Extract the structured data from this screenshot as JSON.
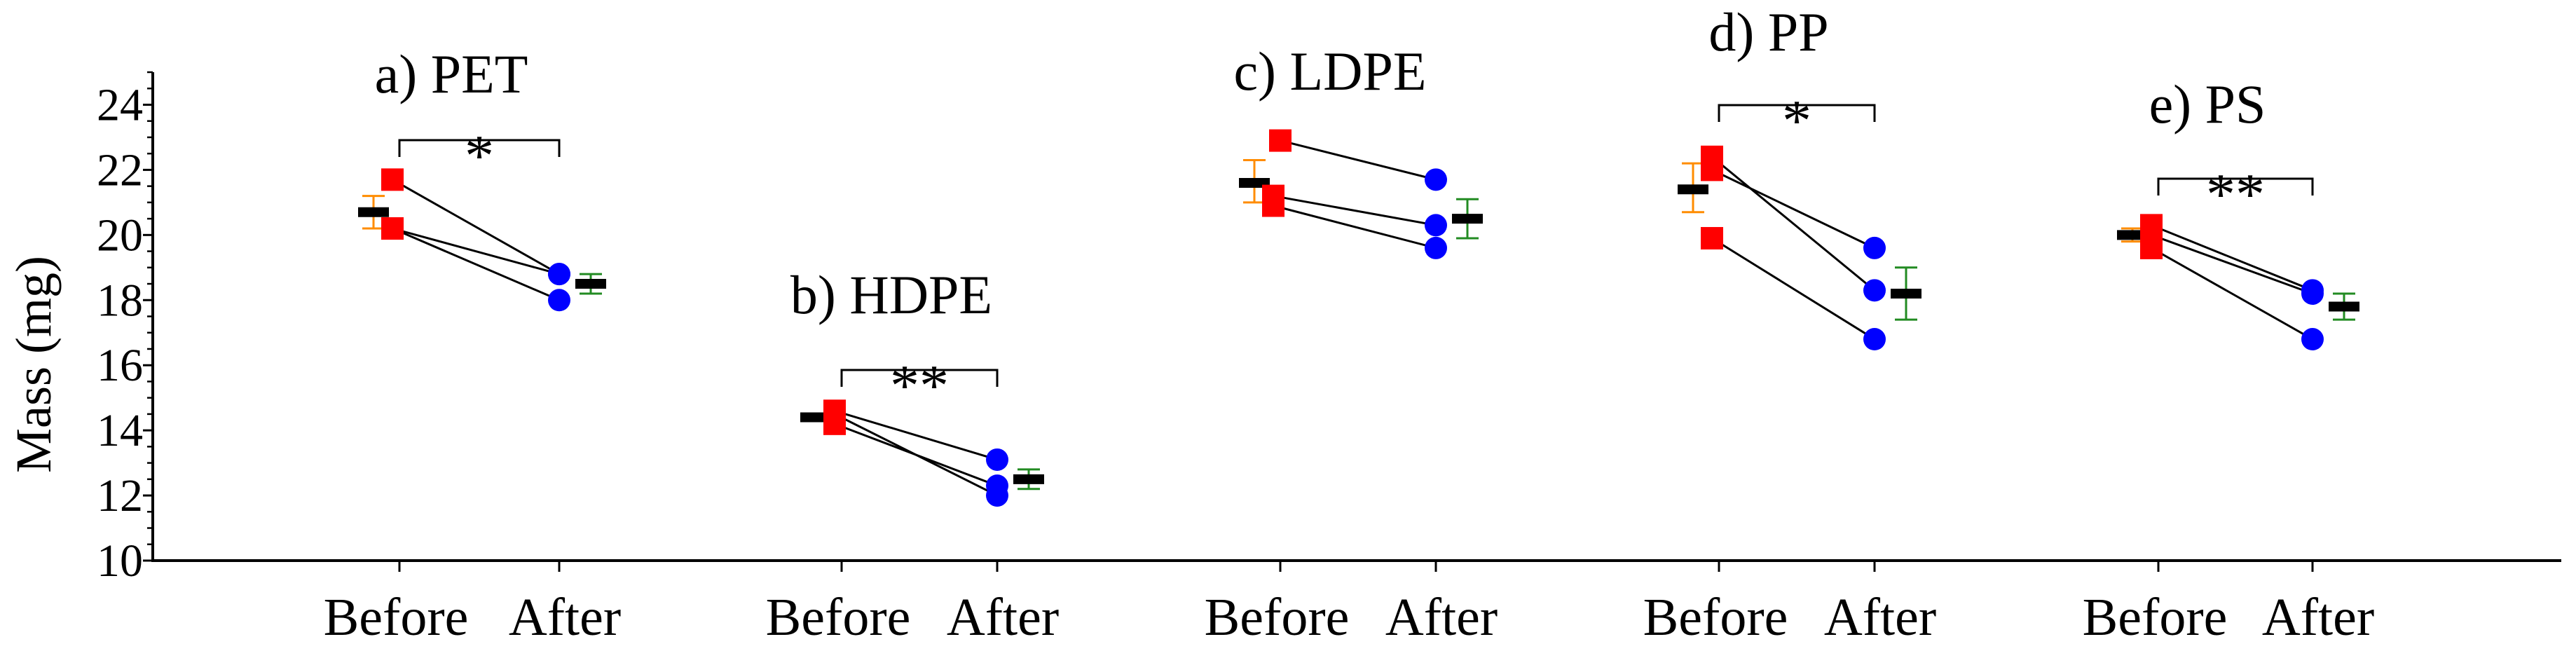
{
  "chart_data": {
    "type": "scatter",
    "ylabel": "Mass (mg)",
    "ylim": [
      10,
      25
    ],
    "yticks": [
      10,
      12,
      14,
      16,
      18,
      20,
      22,
      24
    ],
    "grid": false,
    "colors": {
      "before_marker": "#ff0000",
      "after_marker": "#0000ff",
      "before_error": "#ff8c00",
      "after_error": "#228b22",
      "axis": "#000000"
    },
    "panels": [
      {
        "title": "a) PET",
        "categories": [
          "Before",
          "After"
        ],
        "before": [
          21.7,
          20.2,
          20.2
        ],
        "after": [
          18.8,
          18.0,
          18.8
        ],
        "before_mean": 20.7,
        "before_err": [
          20.2,
          21.2
        ],
        "after_mean": 18.5,
        "after_err": [
          18.2,
          18.8
        ],
        "significance": "*"
      },
      {
        "title": "b) HDPE",
        "categories": [
          "Before",
          "After"
        ],
        "before": [
          14.6,
          14.2,
          14.5
        ],
        "after": [
          13.1,
          12.3,
          12.0
        ],
        "before_mean": 14.4,
        "before_err": [
          14.3,
          14.5
        ],
        "after_mean": 12.5,
        "after_err": [
          12.2,
          12.8
        ],
        "significance": "**"
      },
      {
        "title": "c) LDPE",
        "categories": [
          "Before",
          "After"
        ],
        "before": [
          22.9,
          21.2,
          20.9
        ],
        "after": [
          21.7,
          20.3,
          19.6
        ],
        "before_mean": 21.6,
        "before_err": [
          21.0,
          22.3
        ],
        "after_mean": 20.5,
        "after_err": [
          19.9,
          21.1
        ],
        "significance": ""
      },
      {
        "title": "d) PP",
        "categories": [
          "Before",
          "After"
        ],
        "before": [
          22.4,
          22.0,
          19.9
        ],
        "after": [
          18.3,
          19.6,
          16.8
        ],
        "before_mean": 21.4,
        "before_err": [
          20.7,
          22.2
        ],
        "after_mean": 18.2,
        "after_err": [
          17.4,
          19.0
        ],
        "significance": "*"
      },
      {
        "title": "e) PS",
        "categories": [
          "Before",
          "After"
        ],
        "before": [
          20.3,
          20.0,
          19.6
        ],
        "after": [
          18.3,
          18.2,
          16.8
        ],
        "before_mean": 20.0,
        "before_err": [
          19.8,
          20.2
        ],
        "after_mean": 17.8,
        "after_err": [
          17.4,
          18.2
        ],
        "significance": "**"
      }
    ]
  }
}
